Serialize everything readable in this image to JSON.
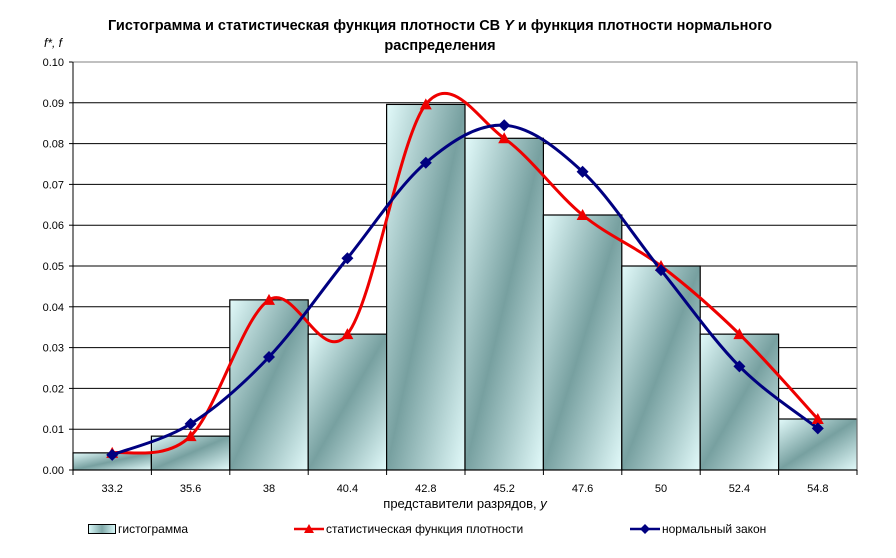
{
  "chart_data": {
    "type": "bar",
    "title_parts": [
      "Гистограмма и статистическая функция плотности  СВ ",
      "Y",
      "  и функция плотности нормального распределения"
    ],
    "ylabel": "f*,  f",
    "xlabel_parts": [
      "представители разрядов, ",
      "y"
    ],
    "ylim": [
      0,
      0.1
    ],
    "yticks": [
      "0.00",
      "0.01",
      "0.02",
      "0.03",
      "0.04",
      "0.05",
      "0.06",
      "0.07",
      "0.08",
      "0.09",
      "0.10"
    ],
    "categories": [
      "33.2",
      "35.6",
      "38",
      "40.4",
      "42.8",
      "45.2",
      "47.6",
      "50",
      "52.4",
      "54.8"
    ],
    "grid": true,
    "legend_placement": "bottom",
    "colors": {
      "bar_light": "#d6f6f6",
      "bar_dark": "#7fa8a8",
      "stat_line": "#ee0000",
      "normal_line": "#000080"
    },
    "series": [
      {
        "name": "гистограмма",
        "type": "bar",
        "values": [
          0.0042,
          0.0083,
          0.0417,
          0.0333,
          0.0896,
          0.0813,
          0.0625,
          0.05,
          0.0333,
          0.0125
        ]
      },
      {
        "name": "статистическая функция плотности",
        "type": "line",
        "marker": "triangle",
        "values": [
          0.0042,
          0.0083,
          0.0417,
          0.0333,
          0.0896,
          0.0813,
          0.0625,
          0.05,
          0.0333,
          0.0125
        ]
      },
      {
        "name": "нормальный закон",
        "type": "line",
        "marker": "diamond",
        "values": [
          0.0037,
          0.0113,
          0.0277,
          0.0519,
          0.0753,
          0.0845,
          0.0731,
          0.049,
          0.0254,
          0.0102
        ]
      }
    ]
  }
}
